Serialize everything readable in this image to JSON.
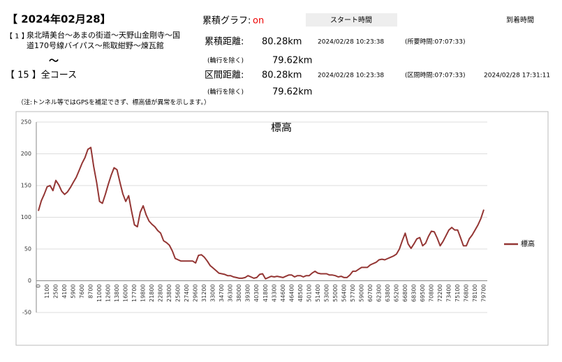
{
  "header": {
    "date": "【 2024年02月28】",
    "graph_label": "累積グラフ:",
    "graph_state": "on",
    "start_label": "スタート時間",
    "arrive_label": "到着時間",
    "from_no": "【 1 】",
    "from_route": [
      "泉北晴美台～あまの街道～天野山金剛寺～国",
      "道170号線バイパス～熊取紺野～煉瓦館"
    ],
    "tilde": "〜",
    "to_route": "【 15 】全コース",
    "cumulative": {
      "label": "累積距離:",
      "distance": "80.28km",
      "start": "2024/02/28 10:23:38",
      "duration": "(所要時間:07:07:33)",
      "excl_label": "(輪行を除く)",
      "excl_distance": "79.62km"
    },
    "section": {
      "label": "区間距離:",
      "distance": "80.28km",
      "start": "2024/02/28 10:23:38",
      "duration": "(区間時間:07:07:33)",
      "arrive": "2024/02/28 17:31:11",
      "excl_label": "(輪行を除く)",
      "excl_distance": "79.62km"
    },
    "note": "（注:トンネル等ではGPSを補足できず、標高値が異常を示します。）"
  },
  "chart_data": {
    "type": "line",
    "title": "標高",
    "categories": [
      "0",
      null,
      null,
      "1100",
      null,
      null,
      "2500",
      null,
      null,
      "4100",
      null,
      null,
      "5900",
      null,
      null,
      "7600",
      null,
      null,
      "8700",
      null,
      null,
      "11000",
      null,
      null,
      "12600",
      null,
      null,
      "13800",
      null,
      null,
      "16000",
      null,
      null,
      "17700",
      null,
      null,
      "19800",
      null,
      null,
      "21800",
      null,
      null,
      "22800",
      null,
      null,
      "23800",
      null,
      null,
      "25600",
      null,
      null,
      "27400",
      null,
      null,
      "29600",
      null,
      null,
      "31200",
      null,
      null,
      "33000",
      null,
      null,
      "34700",
      null,
      null,
      "36300",
      null,
      null,
      "38000",
      null,
      null,
      "39300",
      null,
      null,
      "40300",
      null,
      null,
      "41800",
      null,
      null,
      "43300",
      null,
      null,
      "44600",
      null,
      null,
      "46400",
      null,
      null,
      "48500",
      null,
      null,
      "50100",
      null,
      null,
      "51400",
      null,
      null,
      "53000",
      null,
      null,
      "55000",
      null,
      null,
      "56400",
      null,
      null,
      "57700",
      null,
      null,
      "59000",
      null,
      null,
      "60700",
      null,
      null,
      "62300",
      null,
      null,
      "63800",
      null,
      null,
      "65200",
      null,
      null,
      "66800",
      null,
      null,
      "68300",
      null,
      null,
      "69500",
      null,
      null,
      "70800",
      null,
      null,
      "72200",
      null,
      null,
      "73400",
      null,
      null,
      "75100",
      null,
      null,
      "76800",
      null,
      null,
      "78100",
      null,
      null,
      "79700"
    ],
    "series": [
      {
        "name": "標高",
        "color": "#943634",
        "values": [
          110,
          126,
          136,
          148,
          150,
          142,
          158,
          151,
          141,
          136,
          140,
          147,
          155,
          163,
          174,
          185,
          194,
          207,
          210,
          180,
          155,
          125,
          122,
          136,
          152,
          166,
          178,
          175,
          155,
          137,
          125,
          134,
          110,
          88,
          85,
          108,
          118,
          104,
          94,
          89,
          85,
          79,
          75,
          63,
          60,
          56,
          47,
          35,
          33,
          31,
          31,
          31,
          31,
          31,
          28,
          40,
          41,
          37,
          31,
          24,
          20,
          16,
          12,
          11,
          10,
          8,
          8,
          6,
          5,
          4,
          4,
          5,
          8,
          6,
          4,
          5,
          10,
          11,
          3,
          5,
          7,
          6,
          7,
          6,
          5,
          7,
          9,
          9,
          6,
          8,
          8,
          6,
          8,
          8,
          12,
          15,
          12,
          11,
          11,
          11,
          9,
          9,
          8,
          6,
          7,
          5,
          5,
          9,
          15,
          15,
          18,
          21,
          21,
          21,
          25,
          27,
          29,
          33,
          34,
          33,
          35,
          37,
          39,
          42,
          50,
          63,
          75,
          58,
          51,
          58,
          66,
          68,
          55,
          59,
          70,
          78,
          77,
          67,
          55,
          62,
          71,
          80,
          84,
          80,
          80,
          68,
          55,
          55,
          66,
          72,
          80,
          88,
          98,
          112
        ]
      }
    ],
    "ylim": [
      -50,
      250
    ],
    "yticks": [
      -50,
      0,
      50,
      100,
      150,
      200,
      250
    ],
    "grid": true,
    "legend": "right"
  }
}
